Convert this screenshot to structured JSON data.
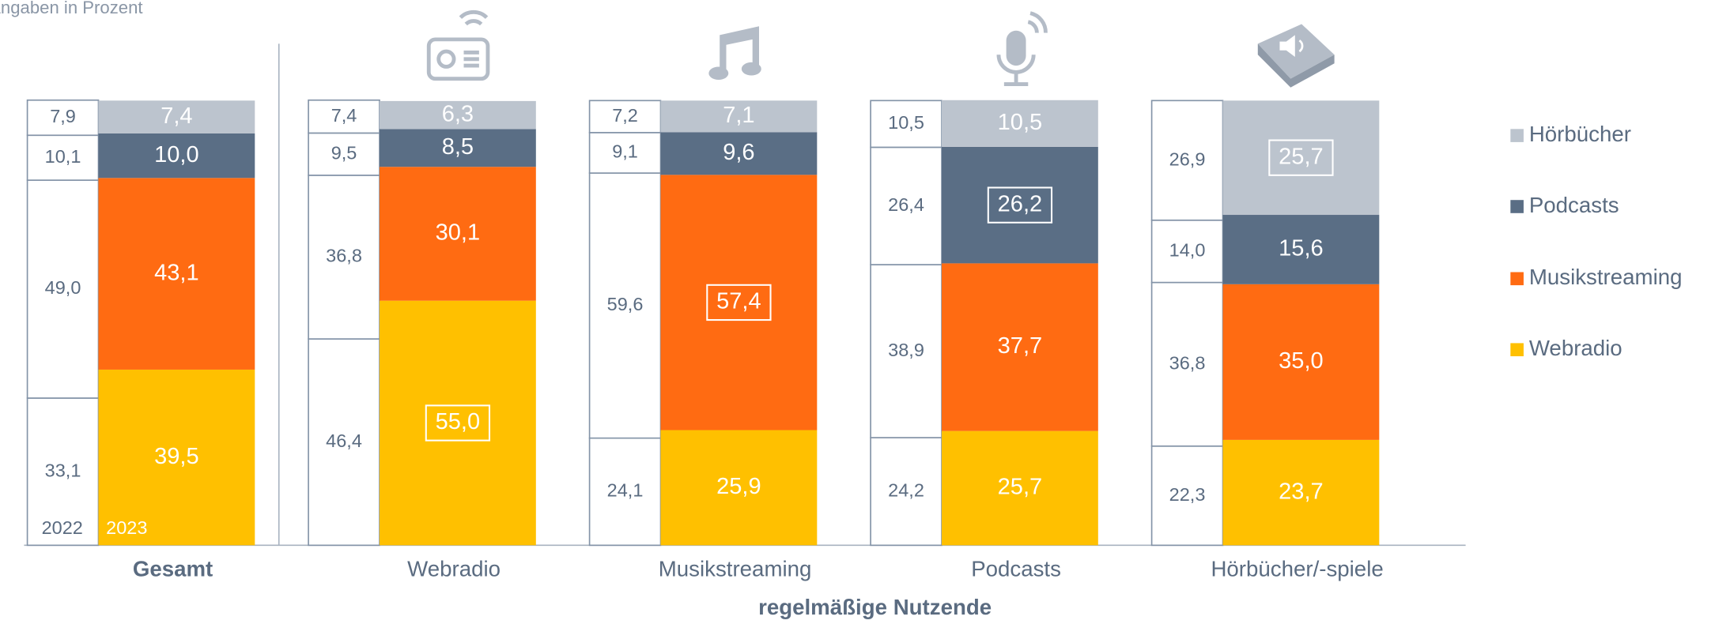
{
  "chart_data": {
    "type": "bar",
    "stacked": true,
    "subtitle": "Angaben in Prozent",
    "x_label": "regelmäßige Nutzende",
    "categories": [
      "Gesamt",
      "Webradio",
      "Musikstreaming",
      "Podcasts",
      "Hörbücher/-spiele"
    ],
    "years": [
      "2022",
      "2023"
    ],
    "ylim": [
      0,
      100
    ],
    "series": [
      {
        "name": "Webradio",
        "color": "#ffc000",
        "values": [
          [
            33.1,
            39.5
          ],
          [
            46.4,
            55.0
          ],
          [
            24.1,
            25.9
          ],
          [
            24.2,
            25.7
          ],
          [
            22.3,
            23.7
          ]
        ],
        "value_labels": [
          [
            "33,1",
            "39,5"
          ],
          [
            "46,4",
            "55,0"
          ],
          [
            "24,1",
            "25,9"
          ],
          [
            "24,2",
            "25,7"
          ],
          [
            "22,3",
            "23,7"
          ]
        ]
      },
      {
        "name": "Musikstreaming",
        "color": "#ff6b12",
        "values": [
          [
            49.0,
            43.1
          ],
          [
            36.8,
            30.1
          ],
          [
            59.6,
            57.4
          ],
          [
            38.9,
            37.7
          ],
          [
            36.8,
            35.0
          ]
        ],
        "value_labels": [
          [
            "49,0",
            "43,1"
          ],
          [
            "36,8",
            "30,1"
          ],
          [
            "59,6",
            "57,4"
          ],
          [
            "38,9",
            "37,7"
          ],
          [
            "36,8",
            "35,0"
          ]
        ]
      },
      {
        "name": "Podcasts",
        "color": "#5a6e85",
        "values": [
          [
            10.1,
            10.0
          ],
          [
            9.5,
            8.5
          ],
          [
            9.1,
            9.6
          ],
          [
            26.4,
            26.2
          ],
          [
            14.0,
            15.6
          ]
        ],
        "value_labels": [
          [
            "10,1",
            "10,0"
          ],
          [
            "9,5",
            "8,5"
          ],
          [
            "9,1",
            "9,6"
          ],
          [
            "26,4",
            "26,2"
          ],
          [
            "14,0",
            "15,6"
          ]
        ]
      },
      {
        "name": "Hörbücher",
        "color": "#bcc4ce",
        "values": [
          [
            7.9,
            7.4
          ],
          [
            7.4,
            6.3
          ],
          [
            7.2,
            7.1
          ],
          [
            10.5,
            10.5
          ],
          [
            26.9,
            25.7
          ]
        ],
        "value_labels": [
          [
            "7,9",
            "7,4"
          ],
          [
            "7,4",
            "6,3"
          ],
          [
            "7,2",
            "7,1"
          ],
          [
            "10,5",
            "10,5"
          ],
          [
            "26,9",
            "25,7"
          ]
        ]
      }
    ],
    "highlighted_series": [
      null,
      0,
      1,
      2,
      3
    ]
  }
}
